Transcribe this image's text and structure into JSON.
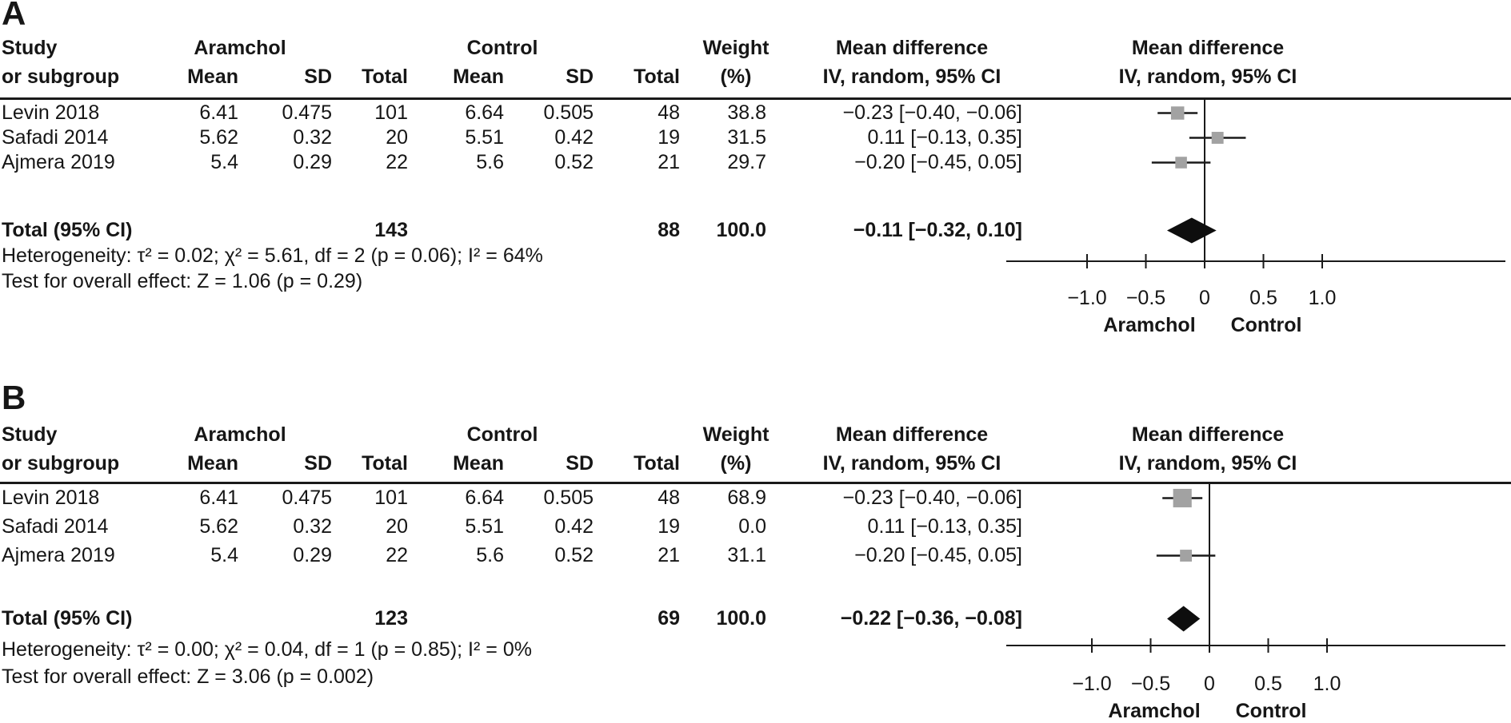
{
  "colors": {
    "square": "#a2a2a2",
    "diamond": "#0e0e0e",
    "line": "#1a1a1a",
    "text": "#161616",
    "background": "#ffffff"
  },
  "panels": [
    {
      "label": "A",
      "header": {
        "study_line1": "Study",
        "study_line2": "or subgroup",
        "group1": "Aramchol",
        "group2": "Control",
        "mean": "Mean",
        "sd": "SD",
        "total": "Total",
        "weight_line1": "Weight",
        "weight_line2": "(%)",
        "md_line1": "Mean difference",
        "md_line2": "IV, random, 95% CI"
      },
      "studies": [
        {
          "name": "Levin 2018",
          "a_mean": "6.41",
          "a_sd": "0.475",
          "a_total": "101",
          "c_mean": "6.64",
          "c_sd": "0.505",
          "c_total": "48",
          "weight": "38.8",
          "md_text": "−0.23 [−0.40, −0.06]"
        },
        {
          "name": "Safadi 2014",
          "a_mean": "5.62",
          "a_sd": "0.32",
          "a_total": "20",
          "c_mean": "5.51",
          "c_sd": "0.42",
          "c_total": "19",
          "weight": "31.5",
          "md_text": "0.11 [−0.13, 0.35]"
        },
        {
          "name": "Ajmera 2019",
          "a_mean": "5.4",
          "a_sd": "0.29",
          "a_total": "22",
          "c_mean": "5.6",
          "c_sd": "0.52",
          "c_total": "21",
          "weight": "29.7",
          "md_text": "−0.20 [−0.45, 0.05]"
        }
      ],
      "total": {
        "label": "Total (95% CI)",
        "a_total": "143",
        "c_total": "88",
        "weight": "100.0",
        "md_text": "−0.11 [−0.32, 0.10]"
      },
      "heterogeneity": "Heterogeneity: τ² = 0.02; χ² = 5.61, df = 2 (p = 0.06); I² = 64%",
      "overall_effect": "Test for overall effect: Z = 1.06 (p = 0.29)",
      "axis": {
        "left_label": "Aramchol",
        "right_label": "Control"
      }
    },
    {
      "label": "B",
      "header": {
        "study_line1": "Study",
        "study_line2": "or subgroup",
        "group1": "Aramchol",
        "group2": "Control",
        "mean": "Mean",
        "sd": "SD",
        "total": "Total",
        "weight_line1": "Weight",
        "weight_line2": "(%)",
        "md_line1": "Mean difference",
        "md_line2": "IV, random, 95% CI"
      },
      "studies": [
        {
          "name": "Levin 2018",
          "a_mean": "6.41",
          "a_sd": "0.475",
          "a_total": "101",
          "c_mean": "6.64",
          "c_sd": "0.505",
          "c_total": "48",
          "weight": "68.9",
          "md_text": "−0.23 [−0.40, −0.06]"
        },
        {
          "name": "Safadi 2014",
          "a_mean": "5.62",
          "a_sd": "0.32",
          "a_total": "20",
          "c_mean": "5.51",
          "c_sd": "0.42",
          "c_total": "19",
          "weight": "0.0",
          "md_text": "0.11 [−0.13, 0.35]"
        },
        {
          "name": "Ajmera 2019",
          "a_mean": "5.4",
          "a_sd": "0.29",
          "a_total": "22",
          "c_mean": "5.6",
          "c_sd": "0.52",
          "c_total": "21",
          "weight": "31.1",
          "md_text": "−0.20 [−0.45, 0.05]"
        }
      ],
      "total": {
        "label": "Total (95% CI)",
        "a_total": "123",
        "c_total": "69",
        "weight": "100.0",
        "md_text": "−0.22 [−0.36, −0.08]"
      },
      "heterogeneity": "Heterogeneity: τ² = 0.00; χ² = 0.04, df = 1 (p = 0.85); I² = 0%",
      "overall_effect": "Test for overall effect: Z = 3.06 (p = 0.002)",
      "axis": {
        "left_label": "Aramchol",
        "right_label": "Control"
      }
    }
  ],
  "chart_data": [
    {
      "type": "forest",
      "title": "Mean difference, IV, random, 95% CI",
      "effect_measure": "Mean difference",
      "model": "IV, random, 95% CI",
      "studies": [
        {
          "label": "Levin 2018",
          "md": -0.23,
          "ci": [
            -0.4,
            -0.06
          ],
          "weight_pct": 38.8
        },
        {
          "label": "Safadi 2014",
          "md": 0.11,
          "ci": [
            -0.13,
            0.35
          ],
          "weight_pct": 31.5
        },
        {
          "label": "Ajmera 2019",
          "md": -0.2,
          "ci": [
            -0.45,
            0.05
          ],
          "weight_pct": 29.7
        }
      ],
      "pooled": {
        "label": "Total (95% CI)",
        "md": -0.11,
        "ci": [
          -0.32,
          0.1
        ],
        "weight_pct": 100.0
      },
      "heterogeneity": {
        "tau2": 0.02,
        "chi2": 5.61,
        "df": 2,
        "p": 0.06,
        "i2_pct": 64
      },
      "overall_effect": {
        "z": 1.06,
        "p": 0.29
      },
      "axis": {
        "ticks": [
          -1.0,
          -0.5,
          0,
          0.5,
          1.0
        ],
        "tick_labels": [
          "−1.0",
          "−0.5",
          "0",
          "0.5",
          "1.0"
        ],
        "range_shown": [
          -1.0,
          1.0
        ],
        "favors_left": "Aramchol",
        "favors_right": "Control"
      }
    },
    {
      "type": "forest",
      "title": "Mean difference, IV, random, 95% CI",
      "effect_measure": "Mean difference",
      "model": "IV, random, 95% CI",
      "studies": [
        {
          "label": "Levin 2018",
          "md": -0.23,
          "ci": [
            -0.4,
            -0.06
          ],
          "weight_pct": 68.9
        },
        {
          "label": "Safadi 2014",
          "md": 0.11,
          "ci": [
            -0.13,
            0.35
          ],
          "weight_pct": 0.0
        },
        {
          "label": "Ajmera 2019",
          "md": -0.2,
          "ci": [
            -0.45,
            0.05
          ],
          "weight_pct": 31.1
        }
      ],
      "pooled": {
        "label": "Total (95% CI)",
        "md": -0.22,
        "ci": [
          -0.36,
          -0.08
        ],
        "weight_pct": 100.0
      },
      "heterogeneity": {
        "tau2": 0.0,
        "chi2": 0.04,
        "df": 1,
        "p": 0.85,
        "i2_pct": 0
      },
      "overall_effect": {
        "z": 3.06,
        "p": 0.002
      },
      "axis": {
        "ticks": [
          -1.0,
          -0.5,
          0,
          0.5,
          1.0
        ],
        "tick_labels": [
          "−1.0",
          "−0.5",
          "0",
          "0.5",
          "1.0"
        ],
        "range_shown": [
          -1.0,
          1.0
        ],
        "favors_left": "Aramchol",
        "favors_right": "Control"
      }
    }
  ]
}
